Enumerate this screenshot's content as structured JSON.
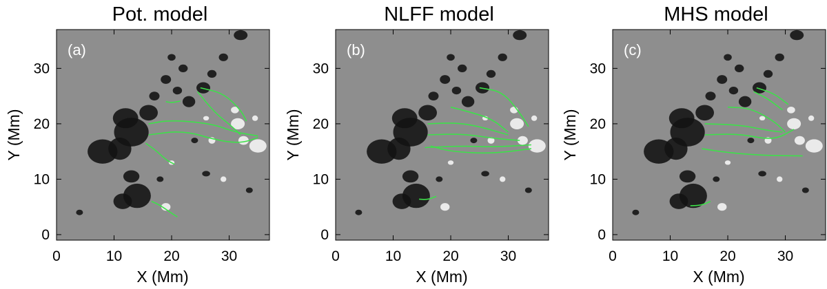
{
  "figure": {
    "panels": [
      {
        "id": "a",
        "title": "Pot. model",
        "label": "(a)",
        "xlabel": "X (Mm)",
        "ylabel": "Y (Mm)",
        "xticks": [
          "0",
          "10",
          "20",
          "30"
        ],
        "yticks": [
          "0",
          "10",
          "20",
          "30"
        ]
      },
      {
        "id": "b",
        "title": "NLFF model",
        "label": "(b)",
        "xlabel": "X (Mm)",
        "ylabel": "Y (Mm)",
        "xticks": [
          "0",
          "10",
          "20",
          "30"
        ],
        "yticks": [
          "0",
          "10",
          "20",
          "30"
        ]
      },
      {
        "id": "c",
        "title": "MHS model",
        "label": "(c)",
        "xlabel": "X (Mm)",
        "ylabel": "Y (Mm)",
        "xticks": [
          "0",
          "10",
          "20",
          "30"
        ],
        "yticks": [
          "0",
          "10",
          "20",
          "30"
        ]
      }
    ],
    "colors": {
      "background_gray": "#8e8e8e",
      "negative_polarity": "#121212",
      "positive_polarity": "#f4f4f4",
      "field_lines": "#3ee04a"
    }
  },
  "chart_data": {
    "type": "image-with-field-lines",
    "xlim": [
      0,
      37
    ],
    "ylim": [
      -1,
      37
    ],
    "field_lines": [
      [
        [
          [
            25,
            26.5
          ],
          [
            29,
            25.5
          ],
          [
            32,
            22.5
          ],
          [
            33,
            20.5
          ]
        ],
        [
          [
            24.5,
            25.8
          ],
          [
            27.5,
            22
          ],
          [
            30.5,
            19.5
          ],
          [
            32,
            18
          ]
        ],
        [
          [
            19,
            24
          ],
          [
            20,
            23.8
          ],
          [
            21.5,
            24.1
          ]
        ],
        [
          [
            16,
            20
          ],
          [
            20,
            20.7
          ],
          [
            27,
            20
          ],
          [
            31,
            18.5
          ],
          [
            35,
            17.8
          ]
        ],
        [
          [
            16,
            18
          ],
          [
            22,
            18.8
          ],
          [
            28,
            17
          ],
          [
            32,
            16.5
          ],
          [
            35,
            17.5
          ]
        ],
        [
          [
            15.5,
            16.5
          ],
          [
            17.5,
            15
          ],
          [
            19,
            13.5
          ],
          [
            20.5,
            12.7
          ]
        ],
        [
          [
            16.5,
            6
          ],
          [
            18,
            5.3
          ],
          [
            19.5,
            4.2
          ],
          [
            21,
            3.2
          ]
        ]
      ],
      [
        [
          [
            25,
            26.5
          ],
          [
            29,
            25.8
          ],
          [
            32,
            22
          ],
          [
            33.5,
            19.5
          ]
        ],
        [
          [
            20,
            23
          ],
          [
            22,
            22.5
          ],
          [
            27,
            21
          ],
          [
            30,
            18.5
          ]
        ],
        [
          [
            16,
            20
          ],
          [
            21,
            20.2
          ],
          [
            25,
            19.5
          ],
          [
            30,
            18
          ]
        ],
        [
          [
            16,
            18
          ],
          [
            22,
            18.2
          ],
          [
            28,
            17.3
          ],
          [
            32,
            17
          ]
        ],
        [
          [
            15.5,
            15.7
          ],
          [
            22,
            16
          ],
          [
            28,
            15.8
          ],
          [
            34,
            16.2
          ]
        ],
        [
          [
            16.5,
            16
          ],
          [
            20,
            15
          ],
          [
            27,
            14.6
          ],
          [
            34,
            15.5
          ]
        ],
        [
          [
            14.5,
            6.4
          ],
          [
            16,
            6.3
          ],
          [
            17.5,
            6.9
          ]
        ]
      ],
      [
        [
          [
            25,
            26.5
          ],
          [
            28,
            25.5
          ],
          [
            30.5,
            23.5
          ]
        ],
        [
          [
            24.5,
            25.8
          ],
          [
            27,
            24.5
          ],
          [
            29.5,
            22.5
          ]
        ],
        [
          [
            20,
            23
          ],
          [
            24,
            22.8
          ],
          [
            28,
            20.5
          ],
          [
            30,
            18.5
          ]
        ],
        [
          [
            16,
            20
          ],
          [
            22,
            19.8
          ],
          [
            27,
            18.8
          ],
          [
            29.5,
            18.5
          ]
        ],
        [
          [
            16,
            18
          ],
          [
            22,
            18.2
          ],
          [
            28,
            17
          ],
          [
            31.5,
            19
          ]
        ],
        [
          [
            15.5,
            15.5
          ],
          [
            20,
            14.8
          ],
          [
            26,
            14.3
          ],
          [
            33,
            14.2
          ]
        ],
        [
          [
            13.5,
            5.2
          ],
          [
            15.5,
            5.3
          ],
          [
            17,
            6
          ]
        ]
      ]
    ]
  }
}
